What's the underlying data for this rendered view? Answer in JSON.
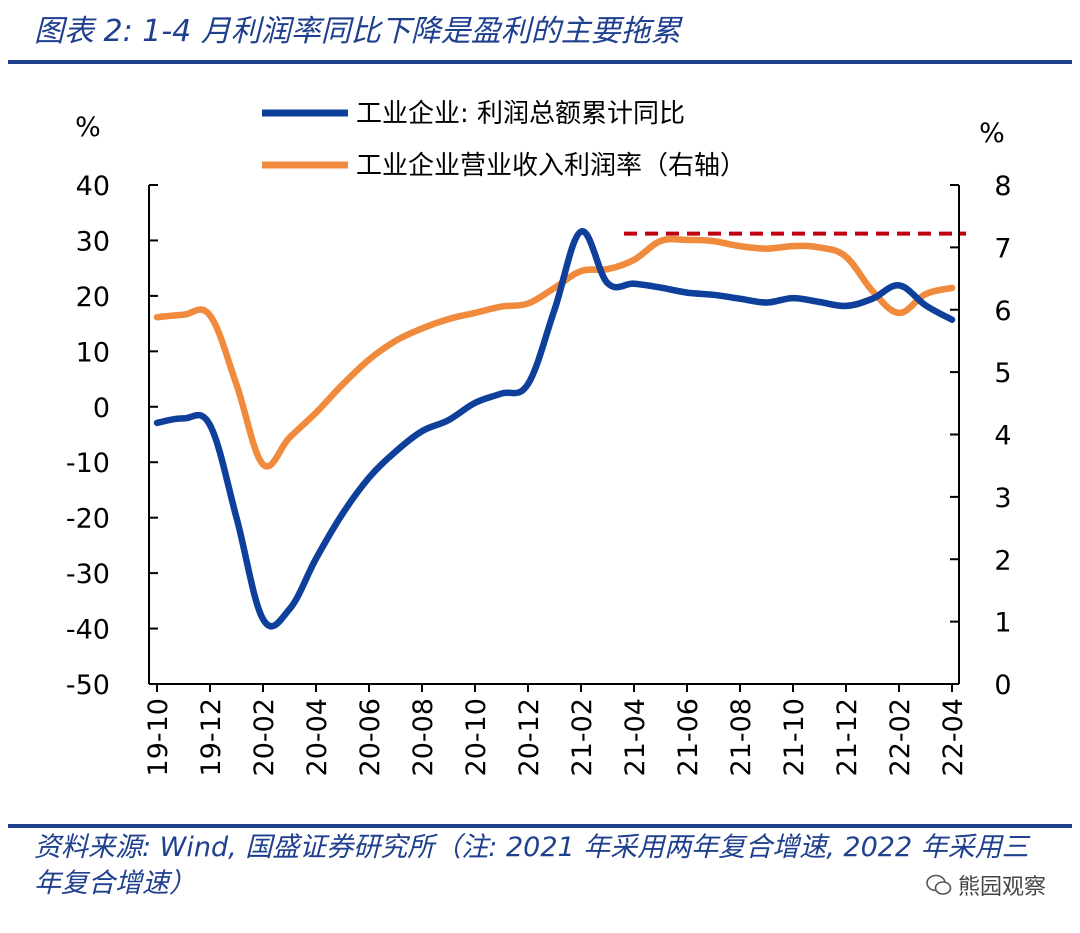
{
  "header": {
    "title": "图表 2:  1-4 月利润率同比下降是盈利的主要拖累"
  },
  "footer": {
    "source": "资料来源:  Wind,  国盛证券研究所（注:  2021 年采用两年复合增速,  2022 年采用三年复合增速）",
    "watermark": "熊园观察"
  },
  "colors": {
    "series_profit": "#0e3f9a",
    "series_margin": "#f08a3c",
    "reference_line": "#c0000e",
    "brand": "#1f3f8f"
  },
  "chart_data": {
    "type": "line",
    "y_left": {
      "unit_label": "%",
      "ylim": [
        -50,
        40
      ],
      "ticks": [
        "40",
        "30",
        "20",
        "10",
        "0",
        "-10",
        "-20",
        "-30",
        "-40",
        "-50"
      ]
    },
    "y_right": {
      "unit_label": "%",
      "ylim": [
        0,
        8
      ],
      "ticks": [
        "8",
        "7",
        "6",
        "5",
        "4",
        "3",
        "2",
        "1",
        "0"
      ]
    },
    "x_ticks": [
      "19-10",
      "19-12",
      "20-02",
      "20-04",
      "20-06",
      "20-08",
      "20-10",
      "20-12",
      "21-02",
      "21-04",
      "21-06",
      "21-08",
      "21-10",
      "21-12",
      "22-02",
      "22-04"
    ],
    "x": [
      "19-10",
      "19-11",
      "19-12",
      "20-01",
      "20-02",
      "20-03",
      "20-04",
      "20-05",
      "20-06",
      "20-07",
      "20-08",
      "20-09",
      "20-10",
      "20-11",
      "20-12",
      "21-01",
      "21-02",
      "21-03",
      "21-04",
      "21-05",
      "21-06",
      "21-07",
      "21-08",
      "21-09",
      "21-10",
      "21-11",
      "21-12",
      "22-01",
      "22-02",
      "22-03",
      "22-04"
    ],
    "series": [
      {
        "name": "工业企业: 利润总额累计同比",
        "axis": "left",
        "values": [
          -2.9,
          -2.1,
          -3.3,
          -20,
          -38.3,
          -36.5,
          -27.4,
          -19.3,
          -12.8,
          -8.1,
          -4.4,
          -2.4,
          0.7,
          2.4,
          4.1,
          17.5,
          31.6,
          22.3,
          22.2,
          21.5,
          20.6,
          20.2,
          19.5,
          18.8,
          19.6,
          18.9,
          18.2,
          19.5,
          21.9,
          18.3,
          15.7
        ]
      },
      {
        "name": "工业企业营业收入利润率（右轴）",
        "axis": "right",
        "values": [
          5.88,
          5.92,
          5.91,
          4.8,
          3.52,
          3.95,
          4.35,
          4.8,
          5.2,
          5.5,
          5.7,
          5.85,
          5.95,
          6.05,
          6.1,
          6.35,
          6.62,
          6.65,
          6.8,
          7.1,
          7.12,
          7.1,
          7.02,
          6.98,
          7.02,
          7.0,
          6.85,
          6.3,
          5.95,
          6.25,
          6.35
        ]
      }
    ],
    "reference_line": {
      "axis": "right",
      "value": 7.22,
      "from": "21-04",
      "to": "22-04",
      "style": "dashed"
    },
    "legend_position": "top-center"
  }
}
